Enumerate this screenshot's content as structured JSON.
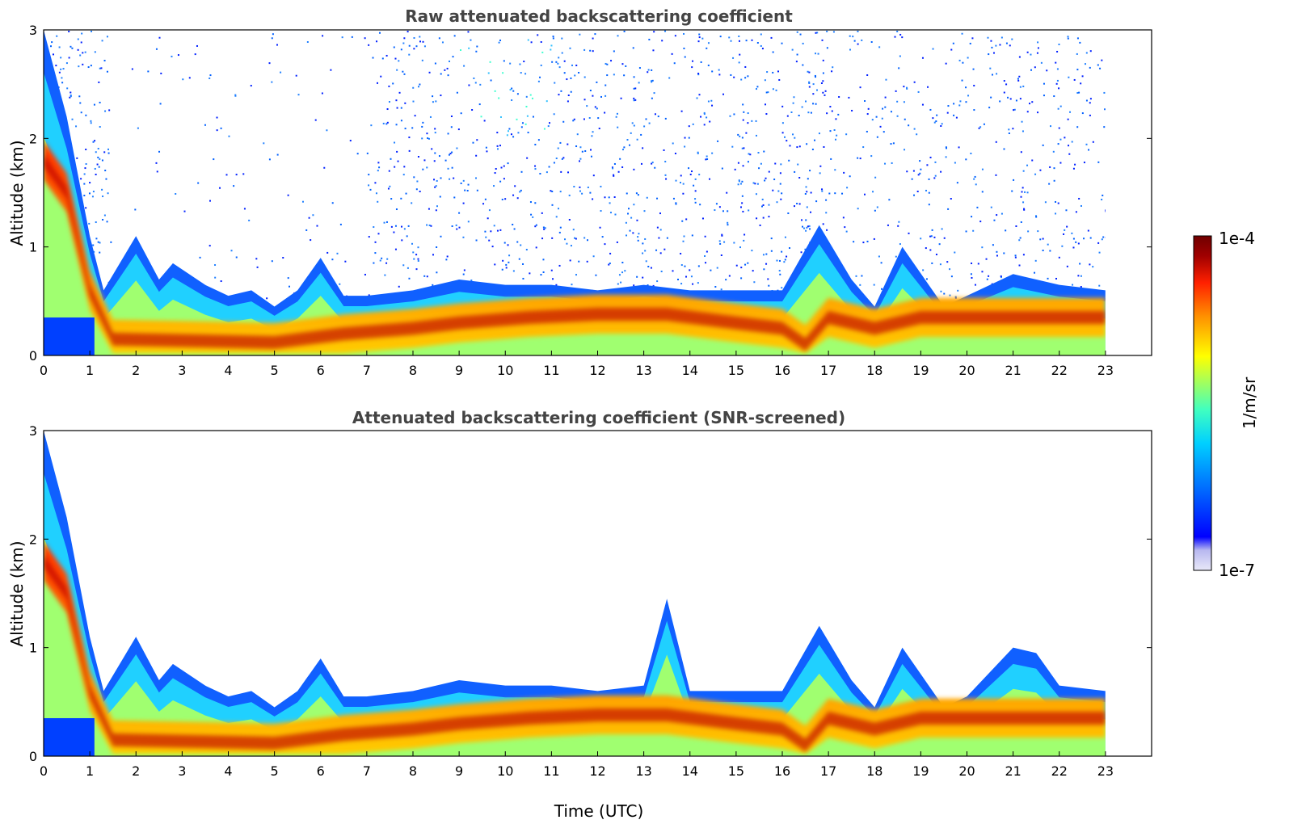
{
  "chart_data": [
    {
      "type": "heatmap",
      "title": "Raw attenuated backscattering coefficient",
      "xlabel": "",
      "ylabel": "Altitude (km)",
      "xlim": [
        0,
        24
      ],
      "ylim": [
        0,
        3
      ],
      "xticks": [
        "0",
        "1",
        "2",
        "3",
        "4",
        "5",
        "6",
        "7",
        "8",
        "9",
        "10",
        "11",
        "12",
        "13",
        "14",
        "15",
        "16",
        "17",
        "18",
        "19",
        "20",
        "21",
        "22",
        "23"
      ],
      "yticks": [
        "0",
        "1",
        "2",
        "3"
      ],
      "screened": false,
      "data_end_hour": 23,
      "boundary_layer_top_km": [
        [
          0,
          3.0
        ],
        [
          0.5,
          2.2
        ],
        [
          1.0,
          1.1
        ],
        [
          1.3,
          0.6
        ],
        [
          2.0,
          1.1
        ],
        [
          2.5,
          0.7
        ],
        [
          2.8,
          0.85
        ],
        [
          3.5,
          0.65
        ],
        [
          4.0,
          0.55
        ],
        [
          4.5,
          0.6
        ],
        [
          5.0,
          0.45
        ],
        [
          5.5,
          0.6
        ],
        [
          6.0,
          0.9
        ],
        [
          6.5,
          0.55
        ],
        [
          7.0,
          0.55
        ],
        [
          8.0,
          0.6
        ],
        [
          9.0,
          0.7
        ],
        [
          10.0,
          0.65
        ],
        [
          11.0,
          0.65
        ],
        [
          12.0,
          0.6
        ],
        [
          13.0,
          0.65
        ],
        [
          14.0,
          0.6
        ],
        [
          15.0,
          0.6
        ],
        [
          16.0,
          0.6
        ],
        [
          16.8,
          1.2
        ],
        [
          17.5,
          0.7
        ],
        [
          18.0,
          0.45
        ],
        [
          18.6,
          1.0
        ],
        [
          19.5,
          0.45
        ],
        [
          20.0,
          0.55
        ],
        [
          21.0,
          0.75
        ],
        [
          22.0,
          0.65
        ],
        [
          23.0,
          0.6
        ]
      ],
      "aerosol_core_km": [
        [
          0,
          1.8
        ],
        [
          0.5,
          1.5
        ],
        [
          1.0,
          0.6
        ],
        [
          1.5,
          0.15
        ],
        [
          5.0,
          0.12
        ],
        [
          6.5,
          0.2
        ],
        [
          8.0,
          0.25
        ],
        [
          9.0,
          0.3
        ],
        [
          10.5,
          0.35
        ],
        [
          12.0,
          0.38
        ],
        [
          13.5,
          0.38
        ],
        [
          15.0,
          0.3
        ],
        [
          16.0,
          0.25
        ],
        [
          16.5,
          0.1
        ],
        [
          17.0,
          0.35
        ],
        [
          18.0,
          0.25
        ],
        [
          19.0,
          0.35
        ],
        [
          21.0,
          0.35
        ],
        [
          23.0,
          0.35
        ]
      ]
    },
    {
      "type": "heatmap",
      "title": "Attenuated backscattering coefficient (SNR-screened)",
      "xlabel": "Time (UTC)",
      "ylabel": "Altitude (km)",
      "xlim": [
        0,
        24
      ],
      "ylim": [
        0,
        3
      ],
      "xticks": [
        "0",
        "1",
        "2",
        "3",
        "4",
        "5",
        "6",
        "7",
        "8",
        "9",
        "10",
        "11",
        "12",
        "13",
        "14",
        "15",
        "16",
        "17",
        "18",
        "19",
        "20",
        "21",
        "22",
        "23"
      ],
      "yticks": [
        "0",
        "1",
        "2",
        "3"
      ],
      "screened": true,
      "data_end_hour": 23,
      "boundary_layer_top_km": [
        [
          0,
          3.0
        ],
        [
          0.5,
          2.2
        ],
        [
          1.0,
          1.1
        ],
        [
          1.3,
          0.6
        ],
        [
          2.0,
          1.1
        ],
        [
          2.5,
          0.7
        ],
        [
          2.8,
          0.85
        ],
        [
          3.5,
          0.65
        ],
        [
          4.0,
          0.55
        ],
        [
          4.5,
          0.6
        ],
        [
          5.0,
          0.45
        ],
        [
          5.5,
          0.6
        ],
        [
          6.0,
          0.9
        ],
        [
          6.5,
          0.55
        ],
        [
          7.0,
          0.55
        ],
        [
          8.0,
          0.6
        ],
        [
          9.0,
          0.7
        ],
        [
          10.0,
          0.65
        ],
        [
          11.0,
          0.65
        ],
        [
          12.0,
          0.6
        ],
        [
          13.0,
          0.65
        ],
        [
          13.5,
          1.45
        ],
        [
          14.0,
          0.6
        ],
        [
          15.0,
          0.6
        ],
        [
          16.0,
          0.6
        ],
        [
          16.8,
          1.2
        ],
        [
          17.5,
          0.7
        ],
        [
          18.0,
          0.45
        ],
        [
          18.6,
          1.0
        ],
        [
          19.5,
          0.45
        ],
        [
          20.0,
          0.55
        ],
        [
          21.0,
          1.0
        ],
        [
          21.5,
          0.95
        ],
        [
          22.0,
          0.65
        ],
        [
          23.0,
          0.6
        ]
      ],
      "aerosol_core_km": [
        [
          0,
          1.8
        ],
        [
          0.5,
          1.5
        ],
        [
          1.0,
          0.6
        ],
        [
          1.5,
          0.15
        ],
        [
          5.0,
          0.12
        ],
        [
          6.5,
          0.2
        ],
        [
          8.0,
          0.25
        ],
        [
          9.0,
          0.3
        ],
        [
          10.5,
          0.35
        ],
        [
          12.0,
          0.38
        ],
        [
          13.5,
          0.38
        ],
        [
          15.0,
          0.3
        ],
        [
          16.0,
          0.25
        ],
        [
          16.5,
          0.1
        ],
        [
          17.0,
          0.35
        ],
        [
          18.0,
          0.25
        ],
        [
          19.0,
          0.35
        ],
        [
          21.0,
          0.35
        ],
        [
          23.0,
          0.35
        ]
      ]
    }
  ],
  "colorbar": {
    "label": "1/m/sr",
    "min_label": "1e-7",
    "max_label": "1e-4",
    "scale": "log",
    "colormap": [
      "#e8e8f8",
      "#b8b8f0",
      "#0000ff",
      "#0070ff",
      "#00d0ff",
      "#40ffc0",
      "#a0ff60",
      "#ffff00",
      "#ff9000",
      "#ff2000",
      "#a00000",
      "#700000"
    ]
  }
}
